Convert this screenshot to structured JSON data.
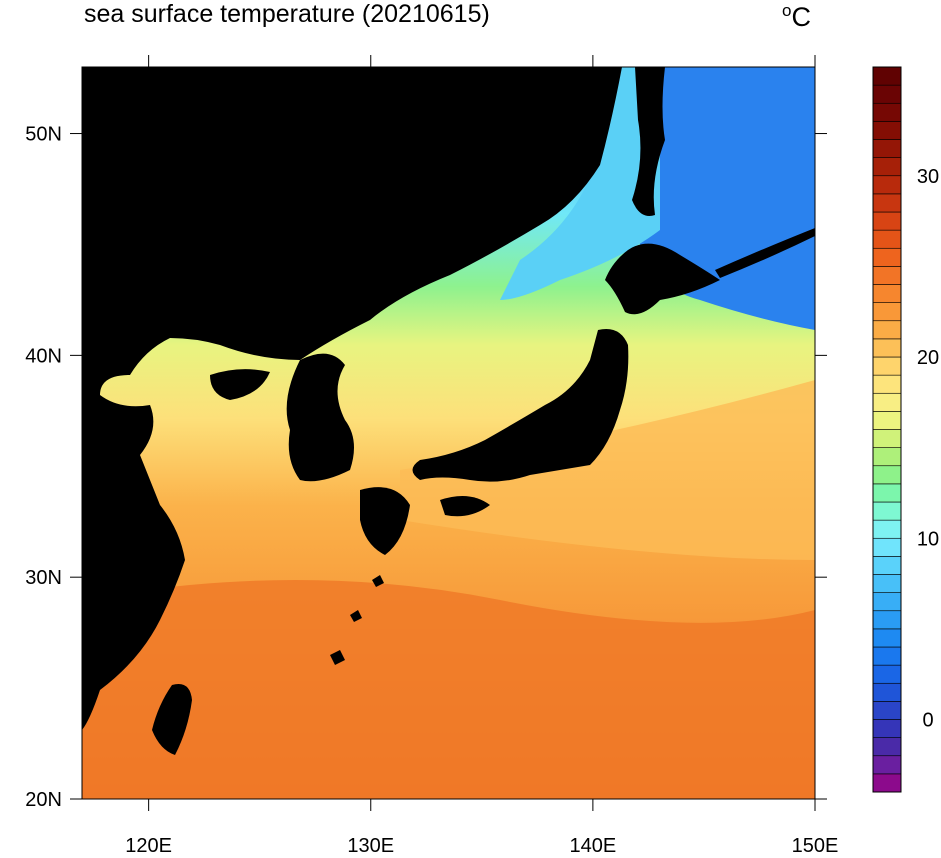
{
  "title": "sea surface temperature (20210615)",
  "unit_label": "C",
  "unit_prefix": "o",
  "map": {
    "region": "Northwest Pacific / Sea of Japan",
    "lon_range": [
      117,
      150
    ],
    "lat_range": [
      20,
      53
    ],
    "lon_ticks": [
      {
        "value": 120,
        "label": "120E"
      },
      {
        "value": 130,
        "label": "130E"
      },
      {
        "value": 140,
        "label": "140E"
      },
      {
        "value": 150,
        "label": "150E"
      }
    ],
    "lat_ticks": [
      {
        "value": 20,
        "label": "20N"
      },
      {
        "value": 30,
        "label": "30N"
      },
      {
        "value": 40,
        "label": "40N"
      },
      {
        "value": 50,
        "label": "50N"
      }
    ],
    "land_color": "#000000"
  },
  "colorbar": {
    "min": -4,
    "max": 36,
    "step": 1,
    "labels": [
      {
        "value": 0,
        "label": "0"
      },
      {
        "value": 10,
        "label": "10"
      },
      {
        "value": 20,
        "label": "20"
      },
      {
        "value": 30,
        "label": "30"
      }
    ],
    "colors": [
      "#8c0a8c",
      "#6a1fa0",
      "#4a2aa8",
      "#3535b8",
      "#2a45c8",
      "#1f55d8",
      "#1a66e6",
      "#1a78ee",
      "#1e8af2",
      "#2a9cf4",
      "#38aef6",
      "#48c0f8",
      "#5ad2fa",
      "#70e4fc",
      "#7ef2f2",
      "#7ef8d2",
      "#7cf6ac",
      "#8ef28a",
      "#aef07a",
      "#d0f27a",
      "#ecf480",
      "#f8ee84",
      "#fde47c",
      "#fed46c",
      "#fcc058",
      "#fbac46",
      "#f99838",
      "#f6862e",
      "#f27426",
      "#ee641e",
      "#e45418",
      "#d84414",
      "#c83610",
      "#b82a0c",
      "#a62008",
      "#941606",
      "#840e04",
      "#760804",
      "#6a0404",
      "#600202"
    ]
  }
}
